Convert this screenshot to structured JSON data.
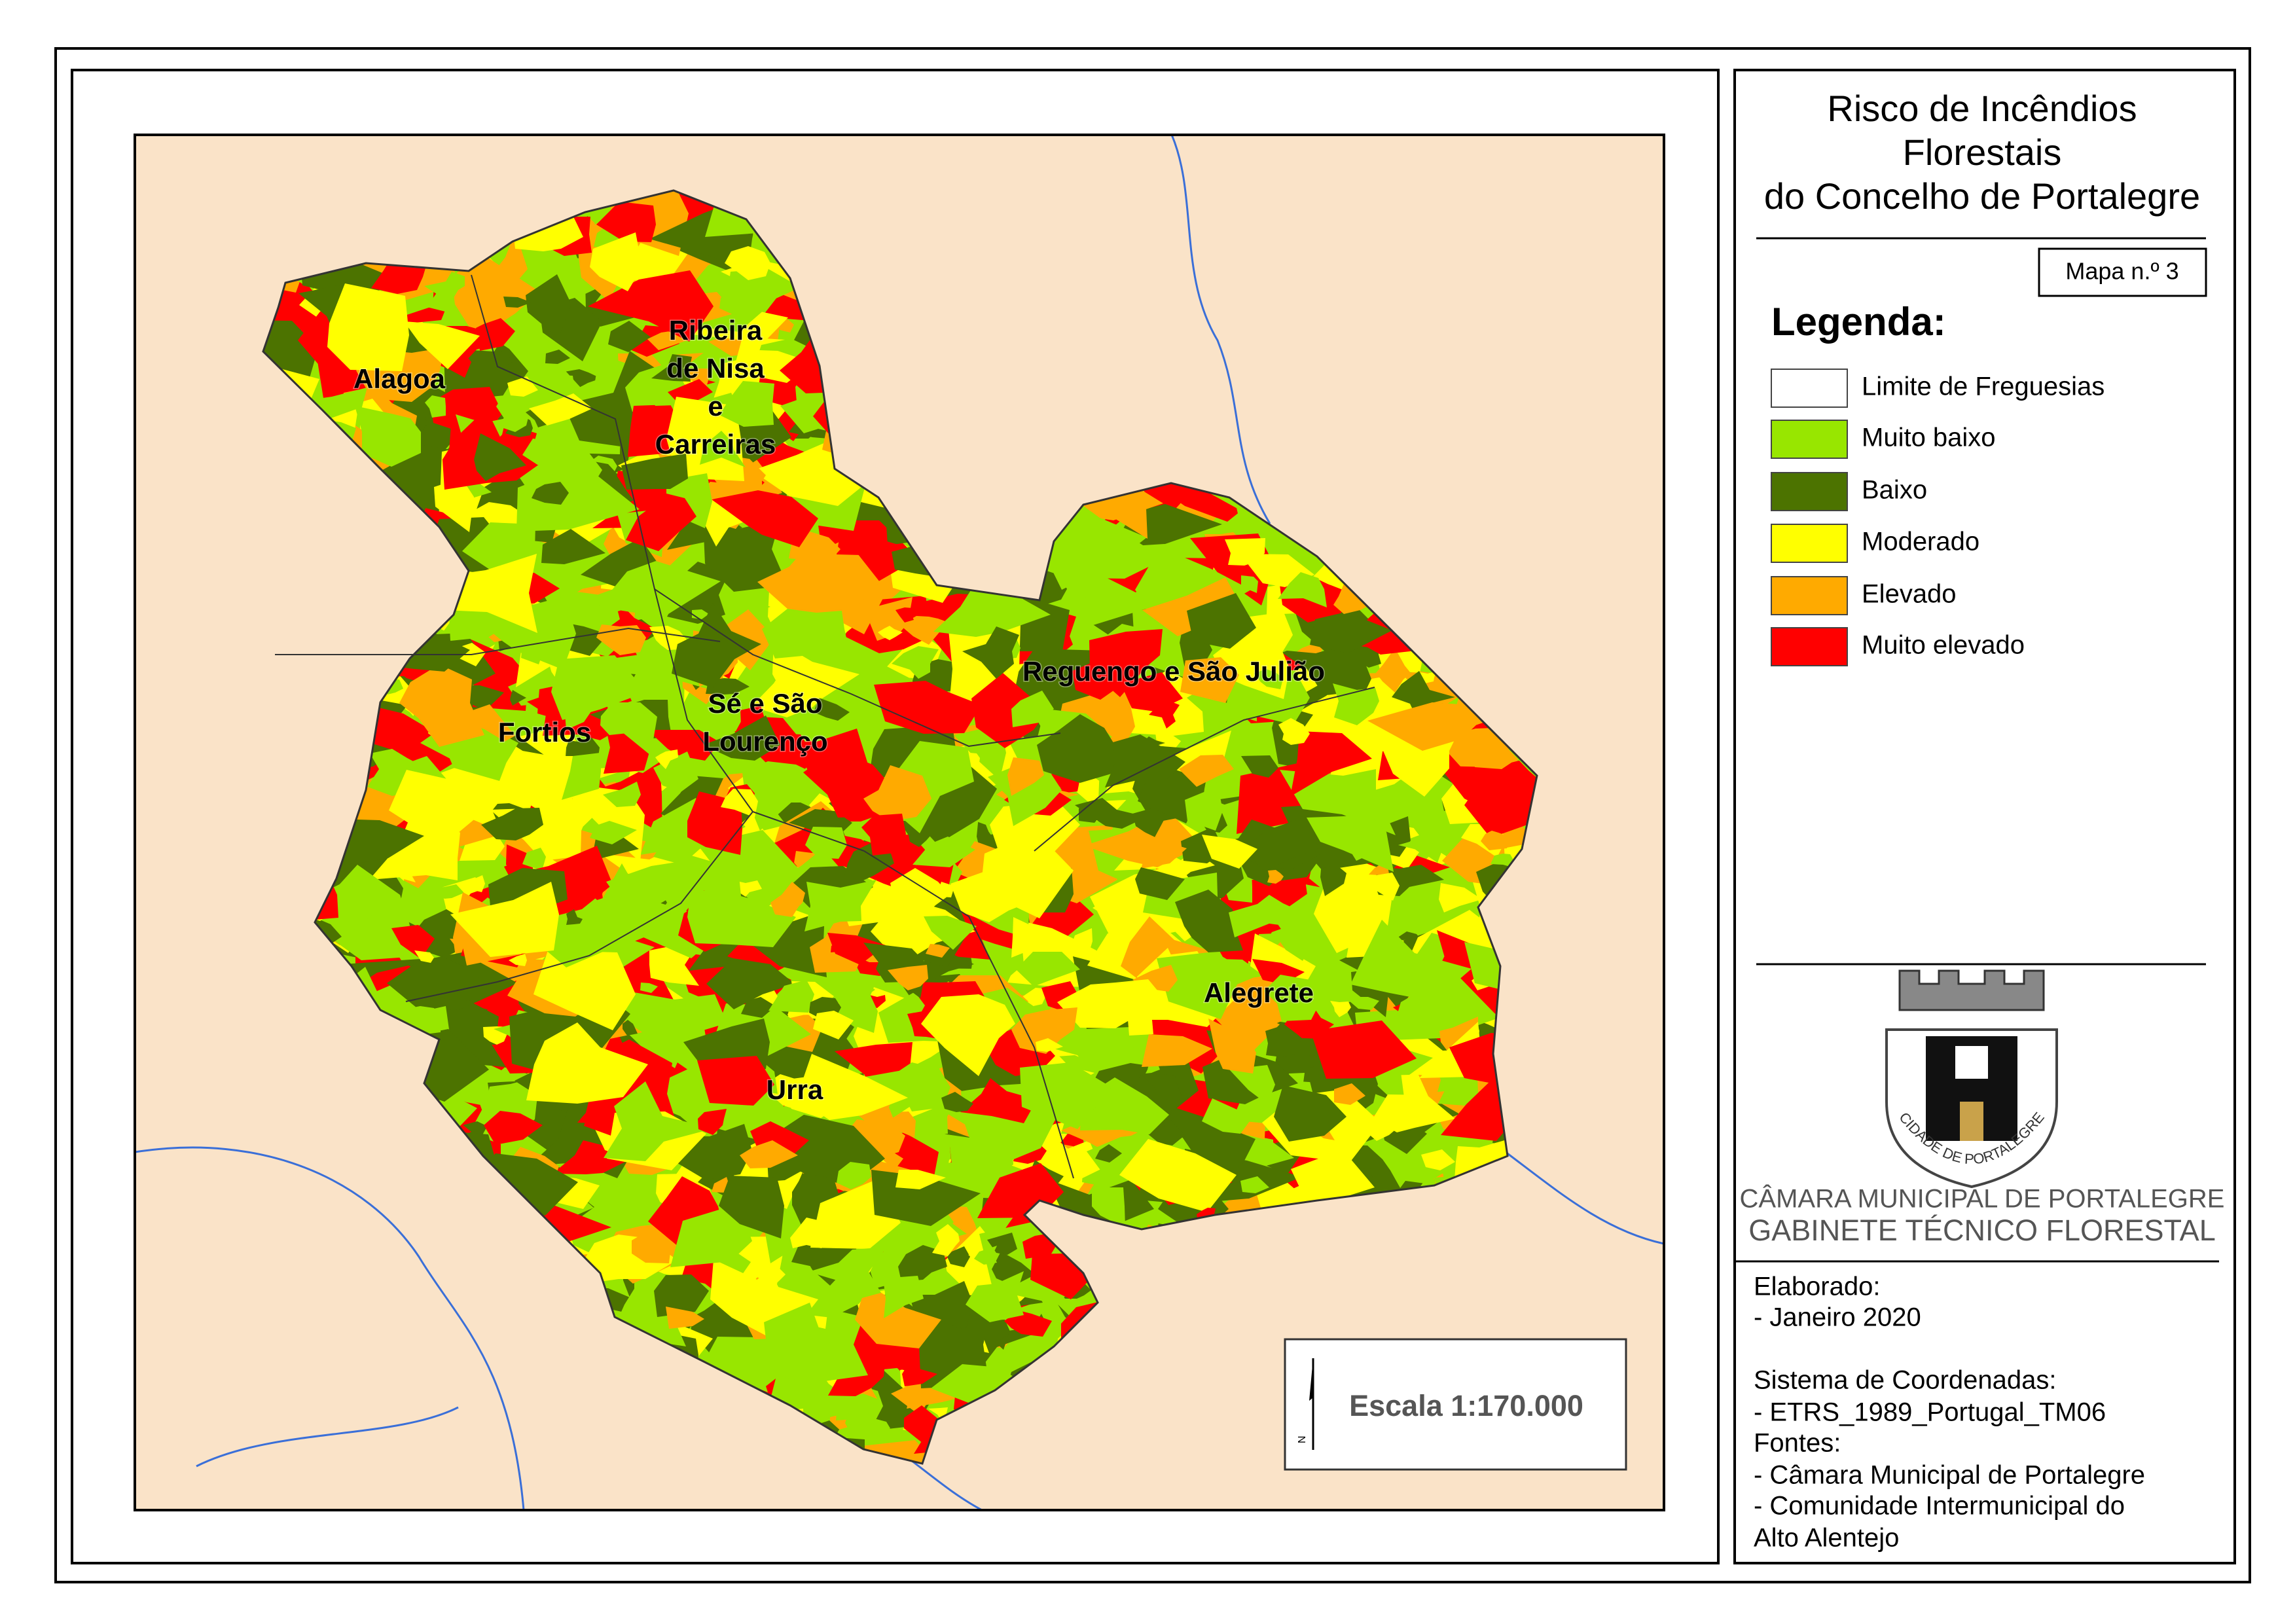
{
  "map": {
    "title": [
      "Risco de Incêndios",
      "Florestais",
      "do Concelho de Portalegre"
    ],
    "map_number": "Mapa n.º 3",
    "legend": {
      "title": "Legenda:",
      "items": [
        {
          "label": "Limite de Freguesias",
          "color": "#ffffff"
        },
        {
          "label": "Muito baixo",
          "color": "#98e600"
        },
        {
          "label": "Baixo",
          "color": "#4c7300"
        },
        {
          "label": "Moderado",
          "color": "#ffff00"
        },
        {
          "label": "Elevado",
          "color": "#ffaa00"
        },
        {
          "label": "Muito elevado",
          "color": "#ff0000"
        }
      ]
    },
    "parishes": [
      "Alagoa",
      "Ribeira",
      "de Nisa",
      "e",
      "Carreiras",
      "Fortios",
      "Sé e São",
      "Lourenço",
      "Reguengo e São Julião",
      "Alegrete",
      "Urra"
    ],
    "scale": "Escala 1:170.000",
    "north": "N",
    "institution": [
      "CÂMARA MUNICIPAL DE PORTALEGRE",
      "GABINETE TÉCNICO FLORESTAL"
    ],
    "crest_text": "CIDADE DE PORTALEGRE",
    "credits": [
      "Elaborado:",
      "- Janeiro 2020",
      "Sistema de Coordenadas:",
      "- ETRS_1989_Portugal_TM06",
      "Fontes:",
      "- Câmara Municipal de Portalegre",
      "- Comunidade Intermunicipal do",
      "Alto Alentejo"
    ]
  }
}
